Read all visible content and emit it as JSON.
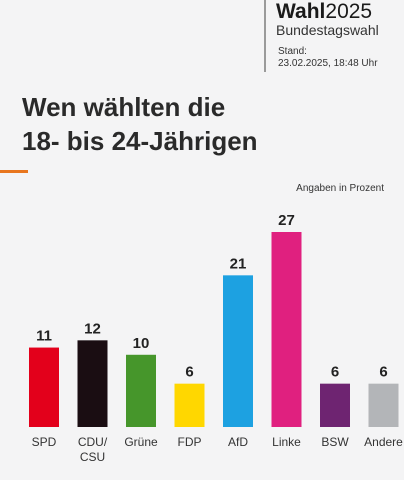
{
  "header": {
    "brand_bold": "Wahl",
    "brand_year": "2025",
    "subtitle": "Bundestagswahl",
    "stand_label": "Stand:",
    "stand_value": "23.02.2025, 18:48 Uhr"
  },
  "colors": {
    "accent": "#e8761e",
    "background": "#f4f4f5"
  },
  "chart_data": {
    "type": "bar",
    "title_lines": [
      "Wen wählten die",
      "18- bis 24-Jährigen"
    ],
    "unit_note": "Angaben in Prozent",
    "categories": [
      [
        "SPD"
      ],
      [
        "CDU/",
        "CSU"
      ],
      [
        "Grüne"
      ],
      [
        "FDP"
      ],
      [
        "AfD"
      ],
      [
        "Linke"
      ],
      [
        "BSW"
      ],
      [
        "Andere"
      ]
    ],
    "values": [
      11,
      12,
      10,
      6,
      21,
      27,
      6,
      6
    ],
    "colors": [
      "#e3001b",
      "#1a0d12",
      "#46962b",
      "#ffd700",
      "#1da1e1",
      "#e0207f",
      "#6e2471",
      "#b3b5b8"
    ],
    "ylim": [
      0,
      27
    ],
    "grid": false,
    "legend": "none"
  }
}
